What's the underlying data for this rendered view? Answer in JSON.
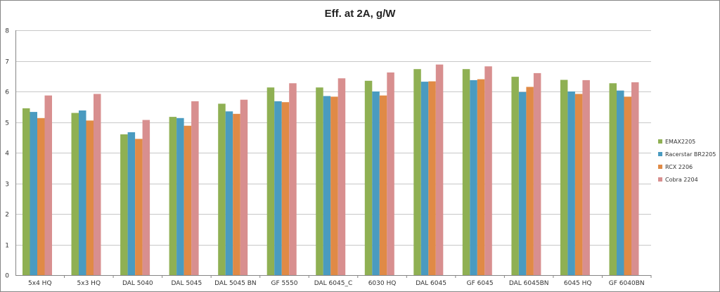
{
  "chart_data": {
    "type": "bar",
    "title": "Eff. at 2A, g/W",
    "xlabel": "",
    "ylabel": "",
    "ylim": [
      0,
      8
    ],
    "yticks": [
      "0",
      "1",
      "2",
      "3",
      "4",
      "5",
      "6",
      "7",
      "8"
    ],
    "grid": true,
    "legend_position": "right",
    "categories": [
      "5x4 HQ",
      "5x3 HQ",
      "DAL 5040",
      "DAL 5045",
      "DAL 5045 BN",
      "GF 5550",
      "DAL 6045_C",
      "6030 HQ",
      "DAL 6045",
      "GF 6045",
      "DAL 6045BN",
      "6045 HQ",
      "GF 6040BN"
    ],
    "series": [
      {
        "name": "EMAX2205",
        "color": "#8fb053",
        "values": [
          5.45,
          5.3,
          4.6,
          5.17,
          5.6,
          6.13,
          6.13,
          6.35,
          6.73,
          6.73,
          6.48,
          6.38,
          6.27
        ]
      },
      {
        "name": "Racerstar BR2205",
        "color": "#4a9bc0",
        "values": [
          5.33,
          5.38,
          4.67,
          5.13,
          5.35,
          5.68,
          5.85,
          6.0,
          6.32,
          6.37,
          5.98,
          6.0,
          6.03
        ]
      },
      {
        "name": "RCX 2206",
        "color": "#e08a46",
        "values": [
          5.13,
          5.05,
          4.45,
          4.88,
          5.27,
          5.65,
          5.83,
          5.87,
          6.33,
          6.4,
          6.15,
          5.92,
          5.83
        ]
      },
      {
        "name": "Cobra 2204",
        "color": "#d88f8f",
        "values": [
          5.87,
          5.92,
          5.07,
          5.68,
          5.73,
          6.27,
          6.43,
          6.62,
          6.88,
          6.82,
          6.6,
          6.37,
          6.3
        ]
      }
    ]
  }
}
